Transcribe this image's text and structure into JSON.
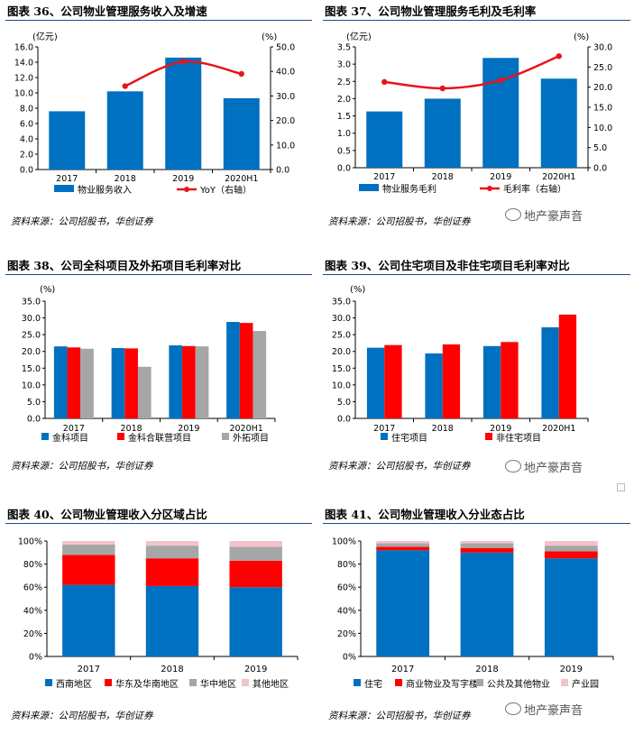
{
  "source_text": "资料来源：公司招股书，华创证券",
  "watermark_text": "地产豪声音",
  "charts": [
    {
      "id": "fig36",
      "title": "图表 36、公司物业管理服务收入及增速",
      "chart_data": {
        "type": "bar",
        "categories": [
          "2017",
          "2018",
          "2019",
          "2020H1"
        ],
        "series": [
          {
            "name": "物业服务收入",
            "type": "bar",
            "axis": "left",
            "color": "#0070c0",
            "values": [
              7.6,
              10.2,
              14.6,
              9.3
            ]
          },
          {
            "name": "YoY（右轴）",
            "type": "line",
            "axis": "right",
            "color": "#e8141b",
            "values": [
              null,
              34,
              44,
              39
            ]
          }
        ],
        "ylabel_left": "(亿元)",
        "ylabel_right": "(%)",
        "ylim_left": [
          0,
          16
        ],
        "yticks_left": [
          "0.0",
          "2.0",
          "4.0",
          "6.0",
          "8.0",
          "10.0",
          "12.0",
          "14.0",
          "16.0"
        ],
        "ylim_right": [
          0,
          50
        ],
        "yticks_right": [
          "0.0",
          "10.0",
          "20.0",
          "30.0",
          "40.0",
          "50.0"
        ],
        "legend": "bottom"
      }
    },
    {
      "id": "fig37",
      "title": "图表 37、公司物业管理服务毛利及毛利率",
      "chart_data": {
        "type": "bar",
        "categories": [
          "2017",
          "2018",
          "2019",
          "2020H1"
        ],
        "series": [
          {
            "name": "物业服务毛利",
            "type": "bar",
            "axis": "left",
            "color": "#0070c0",
            "values": [
              1.63,
              2.0,
              3.18,
              2.58
            ]
          },
          {
            "name": "毛利率（右轴）",
            "type": "line",
            "axis": "right",
            "color": "#e8141b",
            "values": [
              21.3,
              19.7,
              21.7,
              27.7
            ]
          }
        ],
        "ylabel_left": "(亿元)",
        "ylabel_right": "(%)",
        "ylim_left": [
          0,
          3.5
        ],
        "yticks_left": [
          "0.0",
          "0.5",
          "1.0",
          "1.5",
          "2.0",
          "2.5",
          "3.0",
          "3.5"
        ],
        "ylim_right": [
          0,
          30
        ],
        "yticks_right": [
          "0.0",
          "5.0",
          "10.0",
          "15.0",
          "20.0",
          "25.0",
          "30.0"
        ],
        "legend": "bottom"
      }
    },
    {
      "id": "fig38",
      "title": "图表 38、公司全科项目及外拓项目毛利率对比",
      "chart_data": {
        "type": "bar",
        "categories": [
          "2017",
          "2018",
          "2019",
          "2020H1"
        ],
        "series": [
          {
            "name": "金科项目",
            "color": "#0070c0",
            "values": [
              21.5,
              21.0,
              21.8,
              28.8
            ]
          },
          {
            "name": "金科合联营项目",
            "color": "#ff0000",
            "values": [
              21.2,
              20.9,
              21.6,
              28.5
            ]
          },
          {
            "name": "外拓项目",
            "color": "#a6a6a6",
            "values": [
              20.8,
              15.4,
              21.5,
              26.1
            ]
          }
        ],
        "ylabel": "(%)",
        "ylim": [
          0,
          35
        ],
        "yticks": [
          "0.0",
          "5.0",
          "10.0",
          "15.0",
          "20.0",
          "25.0",
          "30.0",
          "35.0"
        ],
        "legend": "bottom"
      }
    },
    {
      "id": "fig39",
      "title": "图表 39、公司住宅项目及非住宅项目毛利率对比",
      "chart_data": {
        "type": "bar",
        "categories": [
          "2017",
          "2018",
          "2019",
          "2020H1"
        ],
        "series": [
          {
            "name": "住宅项目",
            "color": "#0070c0",
            "values": [
              21.1,
              19.4,
              21.6,
              27.2
            ]
          },
          {
            "name": "非住宅项目",
            "color": "#ff0000",
            "values": [
              21.9,
              22.1,
              22.8,
              31.0
            ]
          }
        ],
        "ylabel": "(%)",
        "ylim": [
          0,
          35
        ],
        "yticks": [
          "0.0",
          "5.0",
          "10.0",
          "15.0",
          "20.0",
          "25.0",
          "30.0",
          "35.0"
        ],
        "legend": "bottom"
      }
    },
    {
      "id": "fig40",
      "title": "图表 40、公司物业管理收入分区域占比",
      "chart_data": {
        "type": "bar",
        "stacked": true,
        "categories": [
          "2017",
          "2018",
          "2019"
        ],
        "series": [
          {
            "name": "西南地区",
            "color": "#0070c0",
            "values": [
              62,
              61,
              60
            ]
          },
          {
            "name": "华东及华南地区",
            "color": "#ff0000",
            "values": [
              26,
              24,
              23
            ]
          },
          {
            "name": "华中地区",
            "color": "#a6a6a6",
            "values": [
              9,
              11,
              12
            ]
          },
          {
            "name": "其他地区",
            "color": "#f2c3c9",
            "values": [
              3,
              4,
              5
            ]
          }
        ],
        "ylim": [
          0,
          100
        ],
        "yticks": [
          "0%",
          "20%",
          "40%",
          "60%",
          "80%",
          "100%"
        ],
        "legend": "bottom"
      }
    },
    {
      "id": "fig41",
      "title": "图表 41、公司物业管理收入分业态占比",
      "chart_data": {
        "type": "bar",
        "stacked": true,
        "categories": [
          "2017",
          "2018",
          "2019"
        ],
        "series": [
          {
            "name": "住宅",
            "color": "#0070c0",
            "values": [
              92,
              90,
              85
            ]
          },
          {
            "name": "商业物业及写字楼",
            "color": "#ff0000",
            "values": [
              3,
              4,
              6
            ]
          },
          {
            "name": "公共及其他物业",
            "color": "#a6a6a6",
            "values": [
              3,
              4,
              5
            ]
          },
          {
            "name": "产业园",
            "color": "#f2c3c9",
            "values": [
              2,
              2,
              4
            ]
          }
        ],
        "ylim": [
          0,
          100
        ],
        "yticks": [
          "0%",
          "20%",
          "40%",
          "60%",
          "80%",
          "100%"
        ],
        "legend": "bottom"
      }
    }
  ]
}
